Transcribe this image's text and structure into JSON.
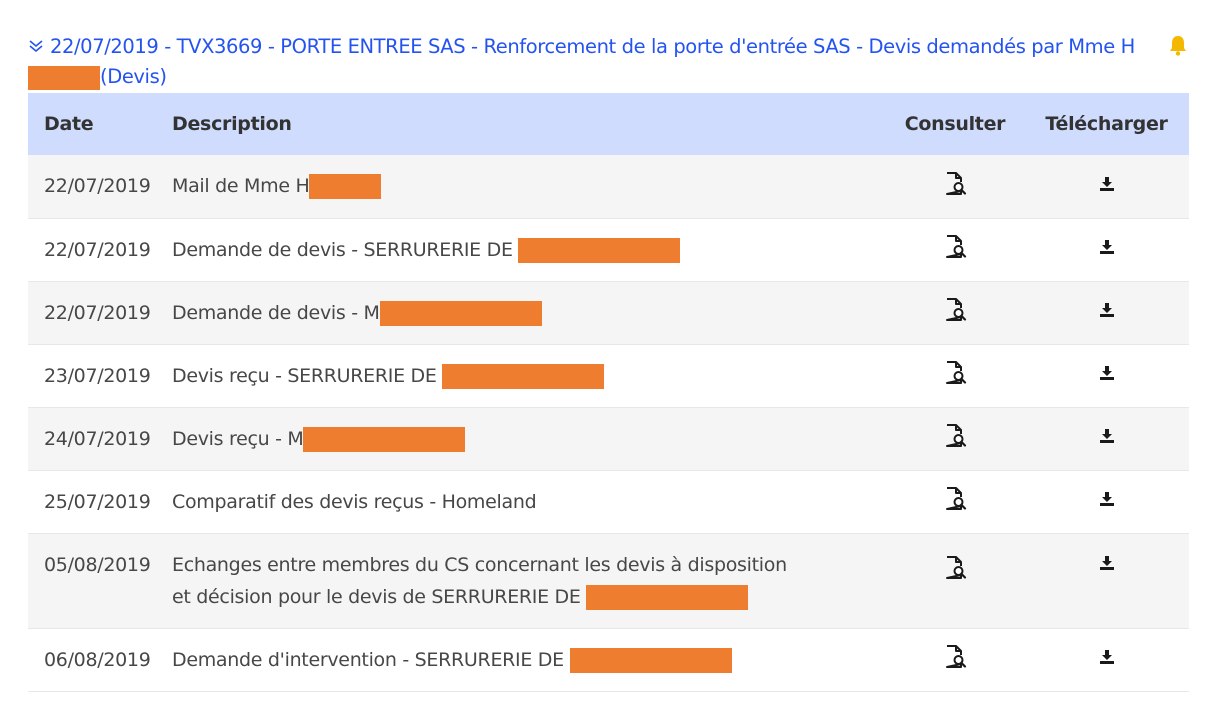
{
  "header": {
    "line": "22/07/2019 - TVX3669 - PORTE ENTREE SAS - Renforcement de la porte d'entrée SAS - Devis demandés par Mme H",
    "suffix": "(Devis)"
  },
  "table": {
    "columns": {
      "date": "Date",
      "description": "Description",
      "consult": "Consulter",
      "download": "Télécharger"
    },
    "rows": [
      {
        "date": "22/07/2019",
        "description": "Mail de Mme H",
        "redact_w": 72
      },
      {
        "date": "22/07/2019",
        "description": "Demande de devis - SERRURERIE DE ",
        "redact_w": 162
      },
      {
        "date": "22/07/2019",
        "description": "Demande de devis - M",
        "redact_w": 162
      },
      {
        "date": "23/07/2019",
        "description": "Devis reçu - SERRURERIE DE ",
        "redact_w": 162
      },
      {
        "date": "24/07/2019",
        "description": "Devis reçu - M",
        "redact_w": 162
      },
      {
        "date": "25/07/2019",
        "description": "Comparatif des devis reçus - Homeland",
        "redact_w": 0
      },
      {
        "date": "05/08/2019",
        "description": "Echanges entre membres du CS concernant les devis à disposition et décision pour le devis de SERRURERIE DE ",
        "redact_w": 162,
        "tall": true
      },
      {
        "date": "06/08/2019",
        "description": "Demande d'intervention - SERRURERIE DE ",
        "redact_w": 162
      }
    ]
  },
  "icons": {
    "toggle": "chevron-double-down-icon",
    "notify": "bell-icon",
    "consult": "file-search-icon",
    "download": "download-icon"
  },
  "colors": {
    "link": "#2453f0",
    "header_bg": "#cfdcfd",
    "redaction": "#ee7d30",
    "bell": "#f5b800"
  }
}
